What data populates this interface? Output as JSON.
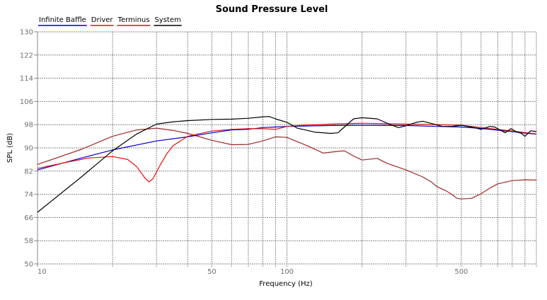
{
  "chart_data": {
    "type": "line",
    "title": "Sound Pressure Level",
    "xlabel": "Frequency (Hz)",
    "ylabel": "SPL (dB)",
    "xscale": "log",
    "xlim": [
      10,
      1000
    ],
    "ylim": [
      50,
      130
    ],
    "grid": true,
    "legend_position": "top-left",
    "y_ticks": [
      130,
      122,
      114,
      106,
      98,
      90,
      82,
      74,
      66,
      58,
      50
    ],
    "x_tick_labels": [
      {
        "value": 10,
        "label": "10"
      },
      {
        "value": 50,
        "label": "50"
      },
      {
        "value": 100,
        "label": "100"
      },
      {
        "value": 500,
        "label": "500"
      }
    ],
    "x_gridlines": [
      20,
      30,
      40,
      50,
      60,
      70,
      80,
      90,
      100,
      200,
      300,
      400,
      500,
      600,
      700,
      800,
      900,
      1000
    ],
    "series": [
      {
        "name": "Infinite Baffle",
        "color": "#0000c8",
        "x": [
          10,
          15,
          20,
          30,
          40,
          50,
          60,
          70,
          80,
          90,
          100,
          150,
          200,
          300,
          400,
          500,
          600,
          700,
          800,
          900,
          1000
        ],
        "y": [
          82.4,
          86.5,
          89.3,
          92.4,
          93.8,
          95.2,
          96.2,
          96.4,
          97.0,
          97.2,
          97.4,
          97.7,
          97.8,
          97.7,
          97.4,
          97.2,
          96.7,
          96.1,
          95.6,
          95.1,
          94.7
        ]
      },
      {
        "name": "Driver",
        "color": "#e01010",
        "x": [
          10,
          13,
          16,
          20,
          23,
          25,
          27,
          28,
          29,
          31,
          33,
          35,
          40,
          50,
          60,
          70,
          80,
          90,
          100,
          115,
          150,
          200,
          300,
          400,
          500,
          600,
          700,
          800,
          900,
          1000
        ],
        "y": [
          82.9,
          85.0,
          86.5,
          87.0,
          86.0,
          83.5,
          79.5,
          78.3,
          79.3,
          84.0,
          88.0,
          90.8,
          94.0,
          95.8,
          96.4,
          96.6,
          96.6,
          96.4,
          97.4,
          97.8,
          98.2,
          98.5,
          98.2,
          98.0,
          97.8,
          97.0,
          96.4,
          95.8,
          95.3,
          94.8
        ]
      },
      {
        "name": "Terminus",
        "color": "#a02828",
        "x": [
          10,
          15,
          20,
          25,
          30,
          35,
          40,
          50,
          60,
          70,
          80,
          90,
          100,
          120,
          140,
          160,
          170,
          185,
          200,
          230,
          250,
          300,
          350,
          380,
          400,
          430,
          460,
          480,
          500,
          550,
          600,
          650,
          700,
          800,
          900,
          1000
        ],
        "y": [
          84.3,
          89.5,
          94.0,
          96.2,
          96.8,
          96.0,
          95.0,
          92.6,
          91.1,
          91.2,
          92.4,
          93.8,
          93.6,
          90.8,
          88.2,
          88.8,
          89.0,
          87.2,
          85.8,
          86.4,
          84.8,
          82.4,
          80.0,
          78.2,
          76.6,
          75.4,
          73.9,
          72.6,
          72.4,
          72.6,
          74.2,
          76.1,
          77.6,
          78.7,
          79.0,
          78.9
        ]
      },
      {
        "name": "System",
        "color": "#000000",
        "x": [
          10,
          15,
          20,
          25,
          30,
          35,
          40,
          50,
          60,
          70,
          80,
          85,
          90,
          100,
          110,
          130,
          150,
          160,
          170,
          185,
          200,
          230,
          260,
          280,
          300,
          330,
          350,
          380,
          420,
          460,
          500,
          550,
          600,
          650,
          680,
          750,
          790,
          830,
          870,
          900,
          950,
          1000
        ],
        "y": [
          67.8,
          80.0,
          89.0,
          94.8,
          98.2,
          99.0,
          99.4,
          99.8,
          99.9,
          100.2,
          100.7,
          100.8,
          100.0,
          98.8,
          96.8,
          95.4,
          95.0,
          95.2,
          97.2,
          100.0,
          100.4,
          100.0,
          98.0,
          97.0,
          97.6,
          98.8,
          99.2,
          98.4,
          97.4,
          97.4,
          97.8,
          97.2,
          96.4,
          97.4,
          97.2,
          95.2,
          96.6,
          95.6,
          95.0,
          94.0,
          95.9,
          95.6
        ]
      }
    ]
  }
}
